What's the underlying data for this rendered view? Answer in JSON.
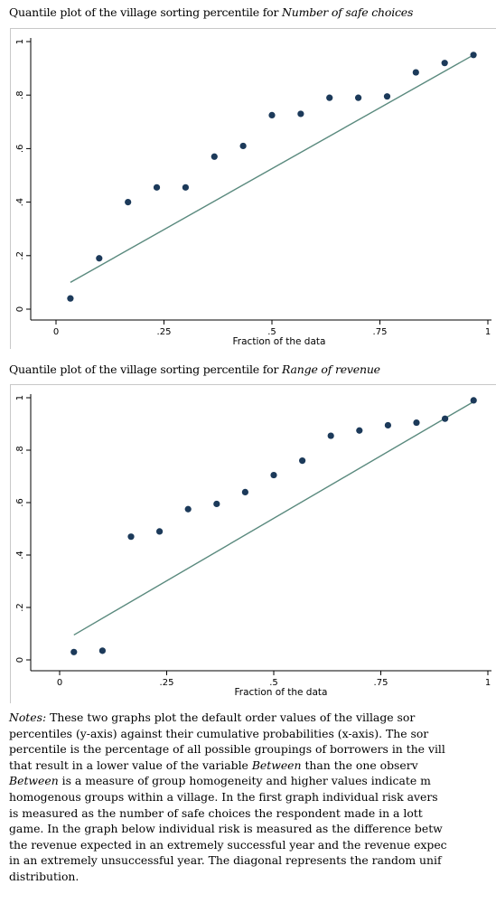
{
  "figure1": {
    "caption_prefix": "Quantile plot of the village sorting percentile for ",
    "caption_italic": "Number of safe choices"
  },
  "figure2": {
    "caption_prefix": "Quantile plot of the village sorting percentile for ",
    "caption_italic": "Range of revenue"
  },
  "chart_data": [
    {
      "type": "scatter",
      "title": "",
      "xlabel": "Fraction of the data",
      "ylabel": "",
      "xlim": [
        0,
        1
      ],
      "ylim": [
        0,
        1
      ],
      "x_ticks": [
        "0",
        ".25",
        ".5",
        ".75",
        "1"
      ],
      "y_ticks": [
        "0",
        ".2",
        ".4",
        ".6",
        ".8",
        "1"
      ],
      "grid": false,
      "points": {
        "x": [
          0.0333,
          0.1,
          0.1667,
          0.2333,
          0.3,
          0.3667,
          0.4333,
          0.5,
          0.5667,
          0.6333,
          0.7,
          0.7667,
          0.8333,
          0.9,
          0.9667
        ],
        "y": [
          0.04,
          0.19,
          0.4,
          0.455,
          0.455,
          0.57,
          0.61,
          0.725,
          0.73,
          0.79,
          0.79,
          0.795,
          0.885,
          0.92,
          0.95
        ]
      },
      "line": {
        "x": [
          0.0333,
          0.9667
        ],
        "y": [
          0.1,
          0.95
        ]
      },
      "colors": {
        "points": "#1c3a5a",
        "line": "#5a8a7e"
      }
    },
    {
      "type": "scatter",
      "title": "",
      "xlabel": "Fraction of the data",
      "ylabel": "",
      "xlim": [
        0,
        1
      ],
      "ylim": [
        0,
        1
      ],
      "x_ticks": [
        "0",
        ".25",
        ".5",
        ".75",
        "1"
      ],
      "y_ticks": [
        "0",
        ".2",
        ".4",
        ".6",
        ".8",
        "1"
      ],
      "grid": false,
      "points": {
        "x": [
          0.0333,
          0.1,
          0.1667,
          0.2333,
          0.3,
          0.3667,
          0.4333,
          0.5,
          0.5667,
          0.6333,
          0.7,
          0.7667,
          0.8333,
          0.9,
          0.9667
        ],
        "y": [
          0.03,
          0.035,
          0.47,
          0.49,
          0.575,
          0.595,
          0.64,
          0.705,
          0.76,
          0.855,
          0.875,
          0.895,
          0.905,
          0.92,
          0.99
        ]
      },
      "line": {
        "x": [
          0.0333,
          0.9667
        ],
        "y": [
          0.095,
          0.985
        ]
      },
      "colors": {
        "points": "#1c3a5a",
        "line": "#5a8a7e"
      }
    }
  ],
  "notes": {
    "label": "Notes:",
    "line1": "These two graphs plot the default order values of the village sor",
    "line2": "percentiles (y-axis) against their cumulative probabilities (x-axis). The sor",
    "line3": "percentile is the percentage of all possible groupings of borrowers in the vill",
    "line4_a": "that result in a lower value of the variable ",
    "line4_b": "Between",
    "line4_c": " than the one observ",
    "line5_a": "Between",
    "line5_b": " is a measure of group homogeneity and higher values indicate m",
    "line6": "homogenous groups within a village. In the first graph individual risk avers",
    "line7": "is measured as the number of safe choices the respondent made in a lott",
    "line8": "game. In the graph below individual risk is measured as the difference betw",
    "line9": "the revenue expected in an extremely successful year and the revenue expec",
    "line10": "in an extremely unsuccessful year. The diagonal represents the random unif",
    "line11": "distribution."
  }
}
